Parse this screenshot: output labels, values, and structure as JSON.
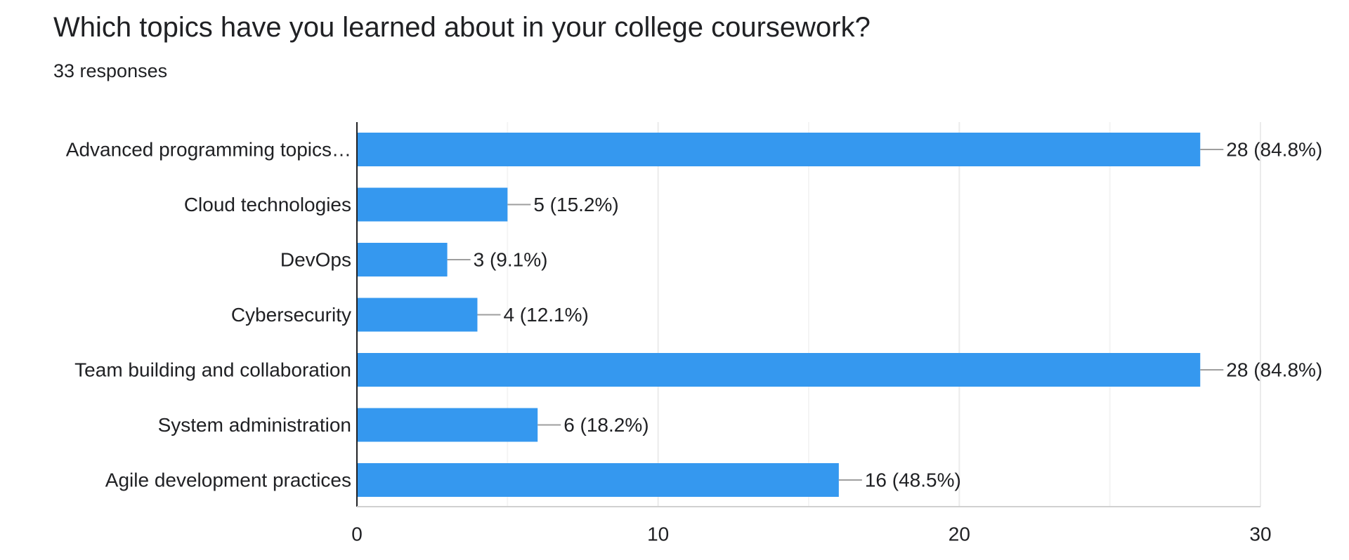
{
  "question": {
    "title": "Which topics have you learned about in your college coursework?",
    "responses": "33 responses"
  },
  "colors": {
    "bar": "#3598EF",
    "grid": "#EBEBEB",
    "axis": "#202124",
    "leader": "#9E9E9E",
    "text": "#202124"
  },
  "chart_data": {
    "type": "bar",
    "orientation": "horizontal",
    "title": "",
    "xlabel": "",
    "ylabel": "",
    "categories": [
      "Advanced programming topics…",
      "Cloud technologies",
      "DevOps",
      "Cybersecurity",
      "Team building and collaboration",
      "System administration",
      "Agile development practices"
    ],
    "values": [
      28,
      5,
      3,
      4,
      28,
      6,
      16
    ],
    "value_labels": [
      "28 (84.8%)",
      "5 (15.2%)",
      "3 (9.1%)",
      "4 (12.1%)",
      "28 (84.8%)",
      "6 (18.2%)",
      "16 (48.5%)"
    ],
    "xlim": [
      0,
      30
    ],
    "xticks": [
      0,
      10,
      20,
      30
    ],
    "xtick_labels": [
      "0",
      "10",
      "20",
      "30"
    ],
    "grid": "vertical",
    "legend": "none"
  }
}
